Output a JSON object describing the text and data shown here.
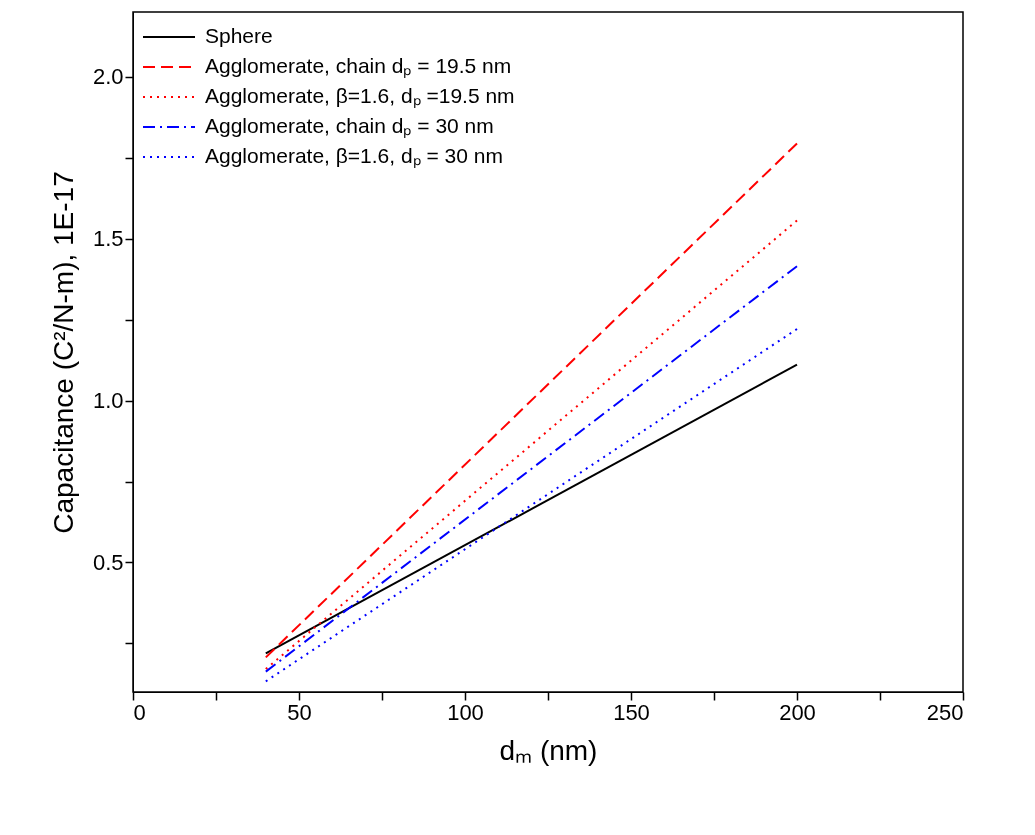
{
  "chart_data": {
    "type": "line",
    "xlabel": "dₘ (nm)",
    "ylabel": "Capacitance (C²/N-m), 1E-17",
    "xlim": [
      0,
      250
    ],
    "ylim": [
      0.1,
      2.2
    ],
    "xticks": [
      0,
      {
        "value": 25,
        "label": null
      },
      50,
      {
        "value": 75,
        "label": null
      },
      100,
      {
        "value": 125,
        "label": null
      },
      150,
      {
        "value": 175,
        "label": null
      },
      200,
      {
        "value": 225,
        "label": null
      },
      250
    ],
    "yticks": [
      {
        "value": 0.25,
        "label": null
      },
      0.5,
      {
        "value": 0.75,
        "label": null
      },
      {
        "value": 1.0,
        "label": "1.0"
      },
      {
        "value": 1.25,
        "label": null
      },
      1.5,
      {
        "value": 1.75,
        "label": null
      },
      {
        "value": 2.0,
        "label": "2.0"
      }
    ],
    "grid": false,
    "legend": "top left",
    "marker": "none",
    "x": [
      40,
      200
    ],
    "series": [
      {
        "name": "Sphere",
        "color": "#000000",
        "line_style": "solid",
        "values": [
          0.219,
          1.111
        ]
      },
      {
        "name": "Agglomerate, chain dₚ = 19.5 nm",
        "color": "#ff0000",
        "line_style": "dashed",
        "values": [
          0.207,
          1.794
        ]
      },
      {
        "name": "Agglomerate, β=1.6, dₚ =19.5 nm",
        "color": "#ff0000",
        "line_style": "dotted",
        "values": [
          0.171,
          1.556
        ]
      },
      {
        "name": "Agglomerate, chain dₚ = 30 nm",
        "color": "#0000ff",
        "line_style": "dashdot",
        "values": [
          0.163,
          1.415
        ]
      },
      {
        "name": "Agglomerate, β=1.6, dₚ = 30 nm",
        "color": "#0000ff",
        "line_style": "dotted",
        "values": [
          0.133,
          1.221
        ]
      }
    ]
  }
}
